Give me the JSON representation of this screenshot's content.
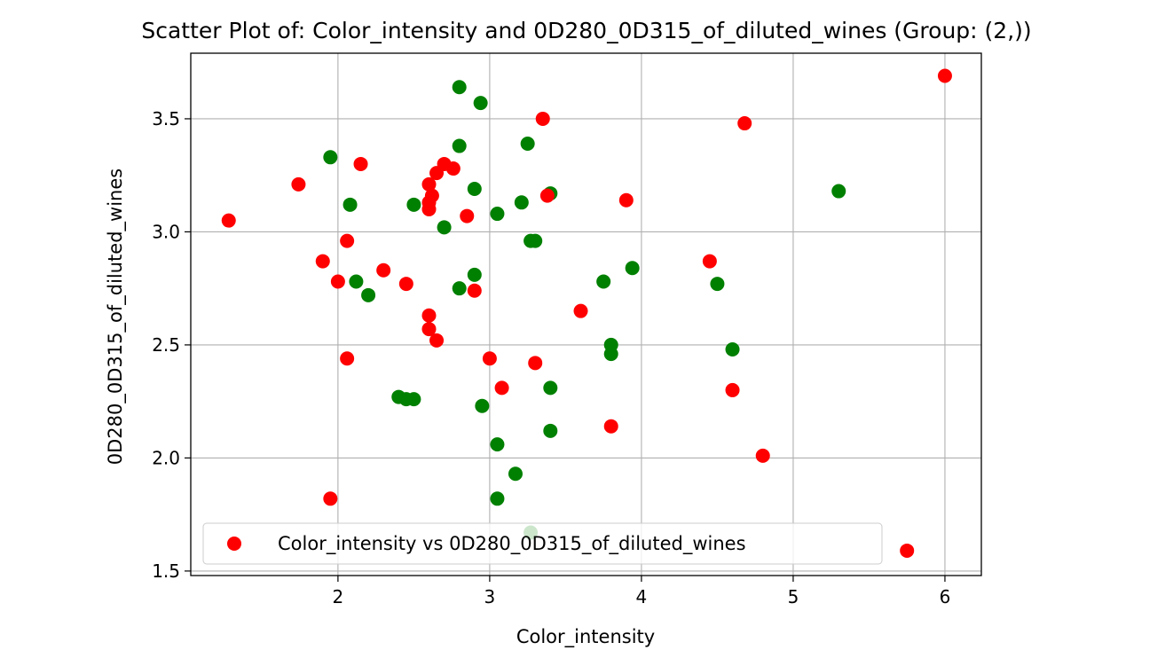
{
  "chart_data": {
    "type": "scatter",
    "title": "Scatter Plot of: Color_intensity and 0D280_0D315_of_diluted_wines (Group: (2,))",
    "xlabel": "Color_intensity",
    "ylabel": "0D280_0D315_of_diluted_wines",
    "xlim": [
      1.03,
      6.24
    ],
    "ylim": [
      1.48,
      3.79
    ],
    "xticks": [
      2,
      3,
      4,
      5,
      6
    ],
    "yticks": [
      1.5,
      2.0,
      2.5,
      3.0,
      3.5
    ],
    "xtick_labels": [
      "2",
      "3",
      "4",
      "5",
      "6"
    ],
    "ytick_labels": [
      "1.5",
      "2.0",
      "2.5",
      "3.0",
      "3.5"
    ],
    "grid": true,
    "legend_position": "lower-left",
    "series": [
      {
        "color": "#008000",
        "points": [
          [
            1.95,
            3.33
          ],
          [
            2.08,
            3.12
          ],
          [
            2.12,
            2.78
          ],
          [
            2.2,
            2.72
          ],
          [
            2.4,
            2.27
          ],
          [
            2.45,
            2.26
          ],
          [
            2.5,
            2.26
          ],
          [
            2.5,
            3.12
          ],
          [
            2.7,
            3.02
          ],
          [
            2.8,
            3.64
          ],
          [
            2.8,
            3.38
          ],
          [
            2.8,
            2.75
          ],
          [
            2.9,
            3.19
          ],
          [
            2.9,
            2.81
          ],
          [
            2.94,
            3.57
          ],
          [
            2.95,
            2.23
          ],
          [
            3.05,
            3.08
          ],
          [
            3.05,
            2.06
          ],
          [
            3.05,
            1.82
          ],
          [
            3.17,
            1.93
          ],
          [
            3.21,
            3.13
          ],
          [
            3.25,
            3.39
          ],
          [
            3.27,
            2.96
          ],
          [
            3.3,
            2.96
          ],
          [
            3.27,
            1.67
          ],
          [
            3.4,
            3.17
          ],
          [
            3.4,
            2.31
          ],
          [
            3.4,
            2.12
          ],
          [
            3.75,
            2.78
          ],
          [
            3.8,
            2.5
          ],
          [
            3.8,
            2.46
          ],
          [
            3.94,
            2.84
          ],
          [
            4.5,
            2.77
          ],
          [
            4.6,
            2.48
          ],
          [
            5.3,
            3.18
          ]
        ]
      },
      {
        "name": "Color_intensity vs 0D280_0D315_of_diluted_wines",
        "color": "#ff0000",
        "points": [
          [
            1.28,
            3.05
          ],
          [
            1.74,
            3.21
          ],
          [
            1.9,
            2.87
          ],
          [
            1.95,
            1.82
          ],
          [
            2.0,
            2.78
          ],
          [
            2.06,
            2.96
          ],
          [
            2.06,
            2.44
          ],
          [
            2.15,
            3.3
          ],
          [
            2.3,
            2.83
          ],
          [
            2.45,
            2.77
          ],
          [
            2.6,
            3.21
          ],
          [
            2.6,
            3.13
          ],
          [
            2.6,
            3.1
          ],
          [
            2.62,
            3.16
          ],
          [
            2.6,
            2.63
          ],
          [
            2.6,
            2.57
          ],
          [
            2.65,
            2.52
          ],
          [
            2.65,
            3.26
          ],
          [
            2.7,
            3.3
          ],
          [
            2.76,
            3.28
          ],
          [
            2.85,
            3.07
          ],
          [
            2.9,
            2.74
          ],
          [
            3.0,
            2.44
          ],
          [
            3.08,
            2.31
          ],
          [
            3.3,
            2.42
          ],
          [
            3.35,
            3.5
          ],
          [
            3.38,
            3.16
          ],
          [
            3.6,
            2.65
          ],
          [
            3.8,
            2.14
          ],
          [
            3.9,
            3.14
          ],
          [
            4.45,
            2.87
          ],
          [
            4.6,
            2.3
          ],
          [
            4.68,
            3.48
          ],
          [
            4.8,
            2.01
          ],
          [
            5.75,
            1.59
          ],
          [
            6.0,
            3.69
          ]
        ]
      }
    ]
  }
}
